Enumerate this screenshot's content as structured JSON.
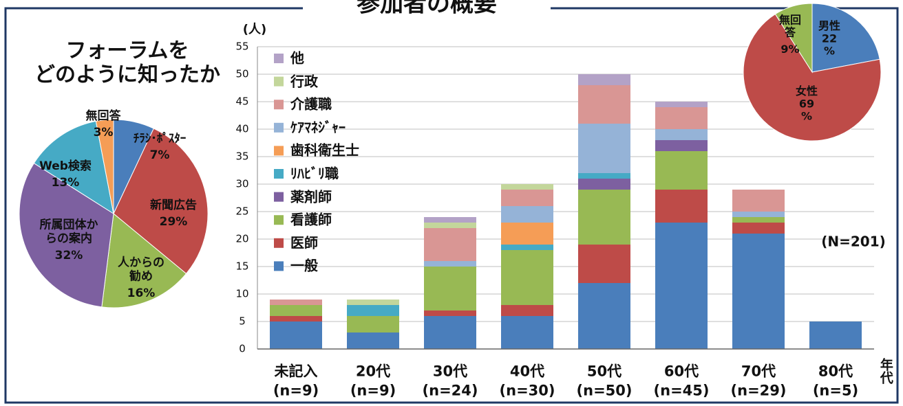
{
  "title": "参加者の概要",
  "chart_data": [
    {
      "type": "pie",
      "title": "フォーラムを\nどのように知ったか",
      "categories": [
        "ﾁﾗｼ･ﾎﾟｽﾀｰ",
        "新聞広告",
        "人からの\n勧め",
        "所属団体か\nらの案内",
        "Web検索",
        "無回答"
      ],
      "values": [
        7,
        29,
        16,
        32,
        13,
        3
      ],
      "value_labels": [
        "7%",
        "29%",
        "16%",
        "32%",
        "13%",
        "3%"
      ],
      "colors": [
        "#4a7ebb",
        "#be4b48",
        "#98b954",
        "#7d60a0",
        "#46aac5",
        "#f59d56"
      ]
    },
    {
      "type": "bar",
      "stacked": true,
      "y_label": "(人)",
      "x_label": "年代",
      "annotation": "(N=201)",
      "grid": true,
      "categories": [
        "未記入\n(n=9)",
        "20代\n(n=9)",
        "30代\n(n=24)",
        "40代\n(n=30)",
        "50代\n(n=50)",
        "60代\n(n=45)",
        "70代\n(n=29)",
        "80代\n(n=5)"
      ],
      "ylim": [
        0,
        55
      ],
      "yticks": [
        0,
        5,
        10,
        15,
        20,
        25,
        30,
        35,
        40,
        45,
        50,
        55
      ],
      "series": [
        {
          "name": "一般",
          "color": "#4a7ebb",
          "values": [
            5,
            3,
            6,
            6,
            12,
            23,
            21,
            5
          ]
        },
        {
          "name": "医師",
          "color": "#be4b48",
          "values": [
            1,
            0,
            1,
            2,
            7,
            6,
            2,
            0
          ]
        },
        {
          "name": "看護師",
          "color": "#98b954",
          "values": [
            2,
            3,
            8,
            10,
            10,
            7,
            1,
            0
          ]
        },
        {
          "name": "薬剤師",
          "color": "#7d60a0",
          "values": [
            0,
            0,
            0,
            0,
            2,
            2,
            0,
            0
          ]
        },
        {
          "name": "ﾘﾊﾋﾞﾘ職",
          "color": "#46aac5",
          "values": [
            0,
            2,
            0,
            1,
            1,
            0,
            0,
            0
          ]
        },
        {
          "name": "歯科衛生士",
          "color": "#f59d56",
          "values": [
            0,
            0,
            0,
            4,
            0,
            0,
            0,
            0
          ]
        },
        {
          "name": "ｹｱﾏﾈｼﾞｬｰ",
          "color": "#95b3d7",
          "values": [
            0,
            0,
            1,
            3,
            9,
            2,
            1,
            0
          ]
        },
        {
          "name": "介護職",
          "color": "#d99694",
          "values": [
            1,
            0,
            6,
            3,
            7,
            4,
            4,
            0
          ]
        },
        {
          "name": "行政",
          "color": "#c3d69b",
          "values": [
            0,
            1,
            1,
            1,
            0,
            0,
            0,
            0
          ]
        },
        {
          "name": "他",
          "color": "#b3a2c7",
          "values": [
            0,
            0,
            1,
            0,
            2,
            1,
            0,
            0
          ]
        }
      ]
    },
    {
      "type": "pie",
      "categories": [
        "男性",
        "女性",
        "無回\n答"
      ],
      "values": [
        22,
        69,
        9
      ],
      "value_labels": [
        "22\n%",
        "69\n%",
        "9%"
      ],
      "colors": [
        "#4a7ebb",
        "#be4b48",
        "#98b954"
      ]
    }
  ]
}
